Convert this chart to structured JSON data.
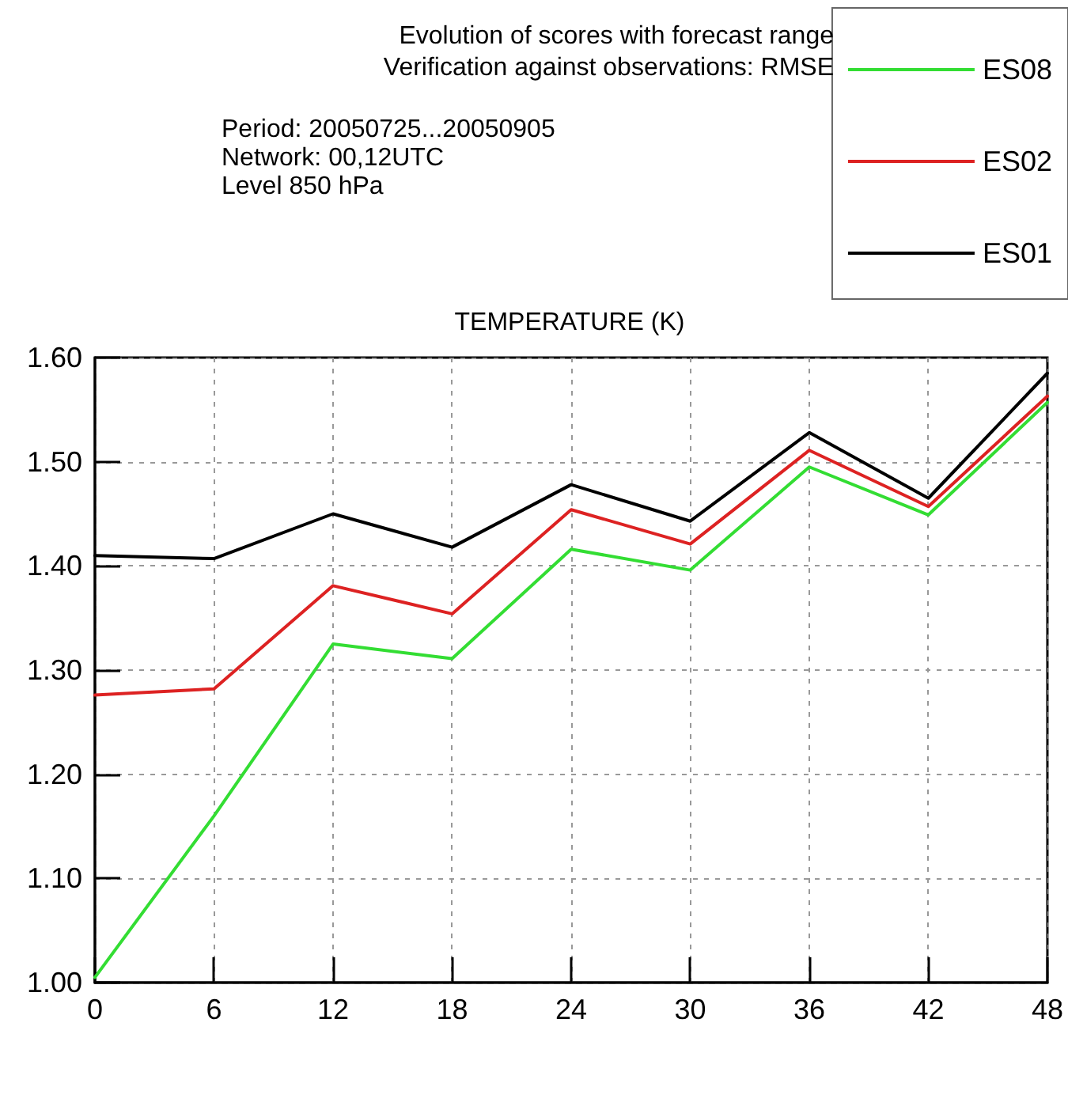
{
  "chart_data": {
    "type": "line",
    "title": "Evolution of scores with forecast range\nVerification against observations: RMSE",
    "subtitle": "Period: 20050725...20050905\nNetwork: 00,12UTC\nLevel 850 hPa",
    "ylabel": "TEMPERATURE (K)",
    "x": [
      0,
      6,
      12,
      18,
      24,
      30,
      36,
      42,
      48
    ],
    "series": [
      {
        "name": "ES08",
        "color": "#33dd33",
        "values": [
          1.005,
          1.16,
          1.325,
          1.311,
          1.416,
          1.396,
          1.495,
          1.449,
          1.557
        ]
      },
      {
        "name": "ES02",
        "color": "#dd2222",
        "values": [
          1.276,
          1.282,
          1.381,
          1.354,
          1.454,
          1.421,
          1.511,
          1.457,
          1.563
        ]
      },
      {
        "name": "ES01",
        "color": "#000000",
        "values": [
          1.41,
          1.407,
          1.45,
          1.418,
          1.478,
          1.443,
          1.528,
          1.465,
          1.585
        ]
      }
    ],
    "xlim": [
      0,
      48
    ],
    "xticks": [
      0,
      6,
      12,
      18,
      24,
      30,
      36,
      42,
      48
    ],
    "ylim": [
      1.0,
      1.6
    ],
    "yticks": [
      {
        "value": 1.0,
        "label": "1.00"
      },
      {
        "value": 1.1,
        "label": "1.10"
      },
      {
        "value": 1.2,
        "label": "1.20"
      },
      {
        "value": 1.3,
        "label": "1.30"
      },
      {
        "value": 1.4,
        "label": "1.40"
      },
      {
        "value": 1.5,
        "label": "1.50"
      },
      {
        "value": 1.6,
        "label": "1.60"
      }
    ],
    "grid": true,
    "legend": "top right",
    "marker": "none",
    "line_style": "solid"
  }
}
